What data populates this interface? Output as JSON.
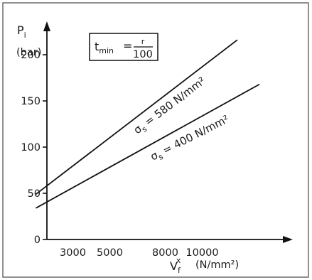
{
  "chart_data": {
    "type": "line",
    "title": "",
    "ylabel_symbol": "P",
    "ylabel_sub": "i",
    "ylabel_unit": "(bar)",
    "xlabel_symbol": "V",
    "xlabel_sub": "f",
    "xlabel_sup": "x",
    "xlabel_unit": "(N/mm²)",
    "xticks": [
      3000,
      5000,
      8000,
      10000
    ],
    "xtick_labels": [
      "3000",
      "5000",
      "8000",
      "10000"
    ],
    "ylim": [
      0,
      240
    ],
    "yticks": [
      0,
      50,
      100,
      150,
      200
    ],
    "ytick_labels": [
      "0",
      "50",
      "100",
      "150",
      "200"
    ],
    "series": [
      {
        "name_symbol": "σ",
        "name_sub": "s",
        "name_text": "= 580 N/mm²",
        "x": [
          1000,
          11900
        ],
        "y": [
          49,
          216
        ]
      },
      {
        "name_symbol": "σ",
        "name_sub": "s",
        "name_text": "= 400 N/mm²",
        "x": [
          1000,
          13100
        ],
        "y": [
          34,
          168
        ]
      }
    ],
    "annotation": {
      "lhs": "t",
      "lhs_sub": "min",
      "equals": "=",
      "numerator": "r",
      "denominator": "100"
    },
    "grid": false,
    "legend": "none"
  }
}
